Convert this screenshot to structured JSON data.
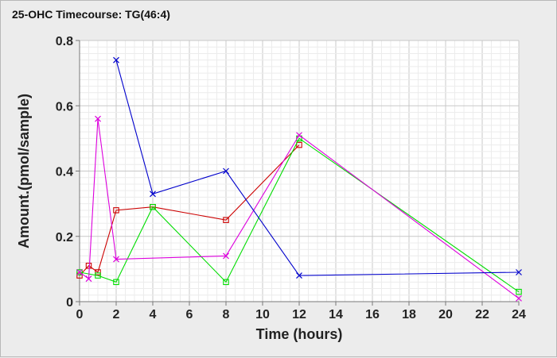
{
  "chart_data": {
    "type": "line",
    "title": "25-OHC Timecourse: TG(46:4)",
    "xlabel": "Time (hours)",
    "ylabel": "Amount.(pmol/sample)",
    "xlim": [
      0,
      24
    ],
    "ylim": [
      0,
      0.8
    ],
    "x_ticks": [
      0,
      2,
      4,
      6,
      8,
      10,
      12,
      14,
      16,
      18,
      20,
      22,
      24
    ],
    "y_ticks": [
      0,
      0.2,
      0.4,
      0.6,
      0.8
    ],
    "y_tick_labels": [
      "0",
      "0.2",
      "0.4",
      "0.6",
      "0.8"
    ],
    "grid": true,
    "legend": "none",
    "series": [
      {
        "color": "#cc0000",
        "marker": "square",
        "x": [
          0,
          0.5,
          1,
          2,
          4,
          8,
          12
        ],
        "y": [
          0.08,
          0.11,
          0.09,
          0.28,
          0.29,
          0.25,
          0.48
        ]
      },
      {
        "color": "#00dd00",
        "marker": "square",
        "x": [
          0,
          1,
          2,
          4,
          8,
          12,
          24
        ],
        "y": [
          0.09,
          0.08,
          0.06,
          0.29,
          0.06,
          0.5,
          0.03
        ]
      },
      {
        "color": "#dd00dd",
        "marker": "x",
        "x": [
          0,
          0.5,
          1,
          2,
          8,
          12,
          24
        ],
        "y": [
          0.09,
          0.07,
          0.56,
          0.13,
          0.14,
          0.51,
          0.01
        ]
      },
      {
        "color": "#0000cc",
        "marker": "x",
        "x": [
          2,
          4,
          8,
          12,
          24
        ],
        "y": [
          0.74,
          0.33,
          0.4,
          0.08,
          0.09
        ]
      }
    ]
  }
}
